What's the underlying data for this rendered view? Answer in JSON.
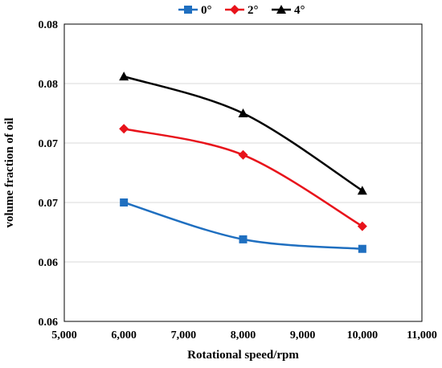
{
  "chart_data": {
    "type": "line",
    "xlabel": "Rotational speed/rpm",
    "ylabel": "volume fraction of oil",
    "xlim": [
      5000,
      11000
    ],
    "ylim": [
      0.06,
      0.085
    ],
    "x_ticks": [
      {
        "value": 5000,
        "label": "5,000"
      },
      {
        "value": 6000,
        "label": "6,000"
      },
      {
        "value": 7000,
        "label": "7,000"
      },
      {
        "value": 8000,
        "label": "8,000"
      },
      {
        "value": 9000,
        "label": "9,000"
      },
      {
        "value": 10000,
        "label": "10,000"
      },
      {
        "value": 11000,
        "label": "11,000"
      }
    ],
    "y_ticks": [
      {
        "value": 0.06,
        "label": "0.06"
      },
      {
        "value": 0.065,
        "label": "0.06"
      },
      {
        "value": 0.07,
        "label": "0.07"
      },
      {
        "value": 0.075,
        "label": "0.07"
      },
      {
        "value": 0.08,
        "label": "0.08"
      },
      {
        "value": 0.085,
        "label": "0.08"
      }
    ],
    "grid": "horizontal",
    "legend_position": "top",
    "x": [
      6000,
      8000,
      10000
    ],
    "series": [
      {
        "name": "0°",
        "color": "#1f6fc0",
        "marker": "square",
        "values": [
          0.07,
          0.0669,
          0.0661
        ]
      },
      {
        "name": "2°",
        "color": "#e8131b",
        "marker": "diamond",
        "values": [
          0.0762,
          0.074,
          0.068
        ]
      },
      {
        "name": "4°",
        "color": "#000000",
        "marker": "triangle",
        "values": [
          0.0806,
          0.0775,
          0.071
        ]
      }
    ]
  }
}
